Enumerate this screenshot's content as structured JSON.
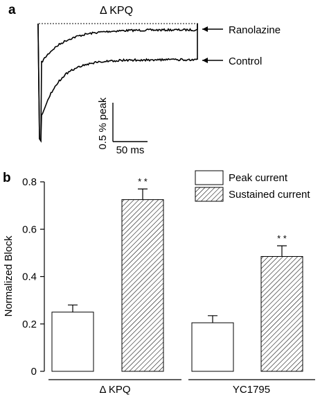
{
  "panel_a": {
    "letter": "a",
    "title": "Δ KPQ",
    "traces": [
      "Ranolazine",
      "Control"
    ],
    "scale_bar": {
      "y_label": "0.5 % peak",
      "x_label": "50 ms"
    }
  },
  "panel_b": {
    "letter": "b",
    "ylabel": "Normalized Block",
    "yticks": [
      "0",
      "0.2",
      "0.4",
      "0.6",
      "0.8"
    ],
    "significance_marker": "* *"
  },
  "chart_data": {
    "type": "bar",
    "categories": [
      "Δ KPQ",
      "YC1795"
    ],
    "series": [
      {
        "name": "Peak current",
        "values": [
          0.25,
          0.205
        ],
        "errors": [
          0.03,
          0.03
        ],
        "significance": [
          "",
          ""
        ],
        "fill": "open"
      },
      {
        "name": "Sustained current",
        "values": [
          0.725,
          0.485
        ],
        "errors": [
          0.045,
          0.045
        ],
        "significance": [
          "* *",
          "* *"
        ],
        "fill": "hatched"
      }
    ],
    "ylabel": "Normalized Block",
    "ylim": [
      0,
      0.8
    ],
    "legend_position": "top-right",
    "grid": false
  },
  "colors": {
    "ink": "#000000",
    "background": "#ffffff"
  }
}
